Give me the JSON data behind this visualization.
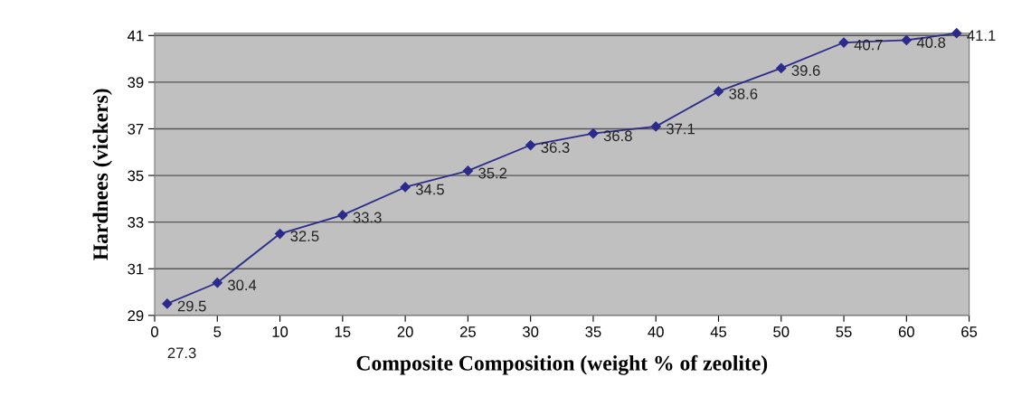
{
  "chart_data": {
    "type": "line",
    "xlabel": "Composite Composition (weight % of zeolite)",
    "ylabel": "Hardnees (vickers)",
    "x": [
      1,
      5,
      10,
      15,
      20,
      25,
      30,
      35,
      40,
      45,
      50,
      55,
      60,
      64
    ],
    "series": [
      {
        "color": "#2b2b8c",
        "values": [
          29.5,
          30.4,
          32.5,
          33.3,
          34.5,
          35.2,
          36.3,
          36.8,
          37.1,
          38.6,
          39.6,
          40.7,
          40.8,
          41.1
        ]
      }
    ],
    "xlim": [
      0,
      65
    ],
    "xticks": [
      0,
      5,
      10,
      15,
      20,
      25,
      30,
      35,
      40,
      45,
      50,
      55,
      60,
      65
    ],
    "ylim": [
      29,
      41.1
    ],
    "yticks": [
      29,
      31,
      33,
      35,
      37,
      39,
      41
    ],
    "grid": "y",
    "marker": "diamond",
    "line_style": "solid",
    "data_labels": true,
    "annotations": [
      "27.3"
    ]
  }
}
